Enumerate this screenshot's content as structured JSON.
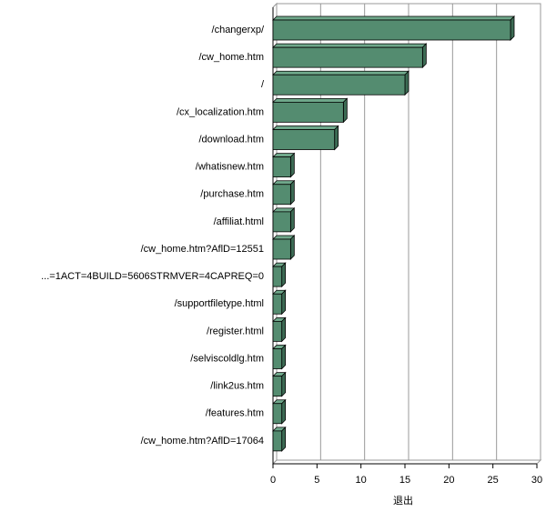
{
  "chart_data": {
    "type": "bar",
    "orientation": "horizontal",
    "categories": [
      "/changerxp/",
      "/cw_home.htm",
      "/",
      "/cx_localization.htm",
      "/download.htm",
      "/whatisnew.htm",
      "/purchase.htm",
      "/affiliat.html",
      "/cw_home.htm?AflD=12551",
      "...=1ACT=4BUILD=5606STRMVER=4CAPREQ=0",
      "/supportfiletype.html",
      "/register.html",
      "/selviscoldlg.htm",
      "/link2us.htm",
      "/features.htm",
      "/cw_home.htm?AflD=17064"
    ],
    "values": [
      27,
      17,
      15,
      8,
      7,
      2,
      2,
      2,
      2,
      1,
      1,
      1,
      1,
      1,
      1,
      1
    ],
    "color": "#548c70",
    "xlim": [
      0,
      30
    ],
    "xticks": [
      0,
      5,
      10,
      15,
      20,
      25,
      30
    ],
    "xlabel": "退出",
    "grid": true
  }
}
